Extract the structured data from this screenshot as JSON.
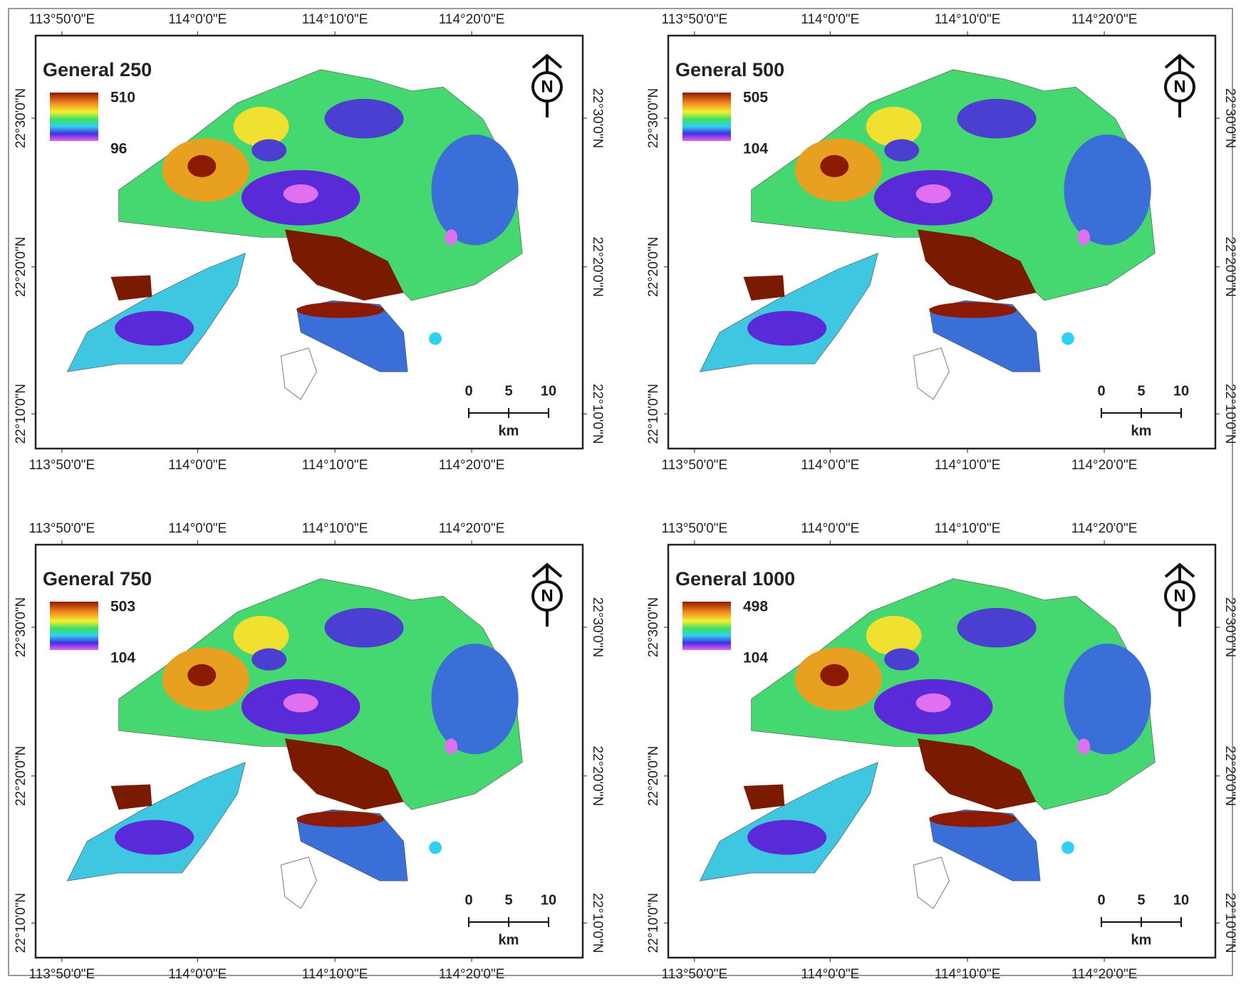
{
  "figure": {
    "panels": [
      {
        "title": "General 250",
        "legend_max": 510,
        "legend_min": 96
      },
      {
        "title": "General 500",
        "legend_max": 505,
        "legend_min": 104
      },
      {
        "title": "General 750",
        "legend_max": 503,
        "legend_min": 104
      },
      {
        "title": "General 1000",
        "legend_max": 498,
        "legend_min": 104
      }
    ],
    "longitude_labels": [
      "113°50'0\"E",
      "114°0'0\"E",
      "114°10'0\"E",
      "114°20'0\"E"
    ],
    "latitude_labels": [
      "22°30'0\"N",
      "22°20'0\"N",
      "22°10'0\"N"
    ],
    "north_label": "N",
    "scale_bar": {
      "labels": [
        0,
        5,
        10
      ],
      "unit": "km"
    }
  }
}
